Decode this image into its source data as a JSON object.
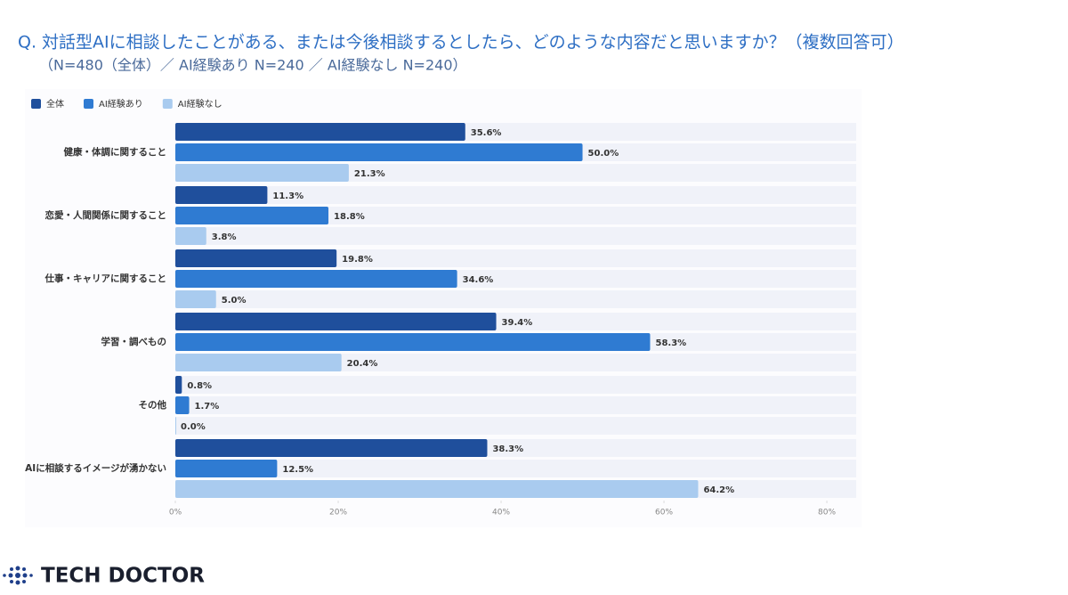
{
  "chart_data": {
    "type": "hbar",
    "title": "Q.  対話型AIに相談したことがある、または今後相談するとしたら、どのような内容だと思いますか？（複数回答可）",
    "subtitle": "（N=480（全体）／ AI経験あり N=240 ／ AI経験なし N=240）",
    "categories": [
      "健康・体調に関すること",
      "恋愛・人間関係に関すること",
      "仕事・キャリアに関すること",
      "学習・調べもの",
      "その他",
      "AIに相談するイメージが湧かない"
    ],
    "series": [
      {
        "name": "全体",
        "color": "#1f4f9c",
        "values": [
          35.6,
          11.3,
          19.8,
          39.4,
          0.8,
          38.3
        ],
        "value_labels": [
          "35.6%",
          "11.3%",
          "19.8%",
          "39.4%",
          "0.8%",
          "38.3%"
        ]
      },
      {
        "name": "AI経験あり",
        "color": "#2f7bd2",
        "values": [
          50.0,
          18.8,
          34.6,
          58.3,
          1.7,
          12.5
        ],
        "value_labels": [
          "50.0%",
          "18.8%",
          "34.6%",
          "58.3%",
          "1.7%",
          "12.5%"
        ]
      },
      {
        "name": "AI経験なし",
        "color": "#a9cbef",
        "values": [
          21.3,
          3.8,
          5.0,
          20.4,
          0.0,
          64.2
        ],
        "value_labels": [
          "21.3%",
          "3.8%",
          "5.0%",
          "20.4%",
          "0.0%",
          "64.2%"
        ]
      }
    ],
    "xlim": [
      0,
      83.6
    ],
    "xticks": [
      {
        "value": 0,
        "label": "0%"
      },
      {
        "value": 20,
        "label": "20%"
      },
      {
        "value": 40,
        "label": "40%"
      },
      {
        "value": 60,
        "label": "60%"
      },
      {
        "value": 80,
        "label": "80%"
      }
    ],
    "legend": "top-left"
  },
  "logo": "TECH DOCTOR"
}
